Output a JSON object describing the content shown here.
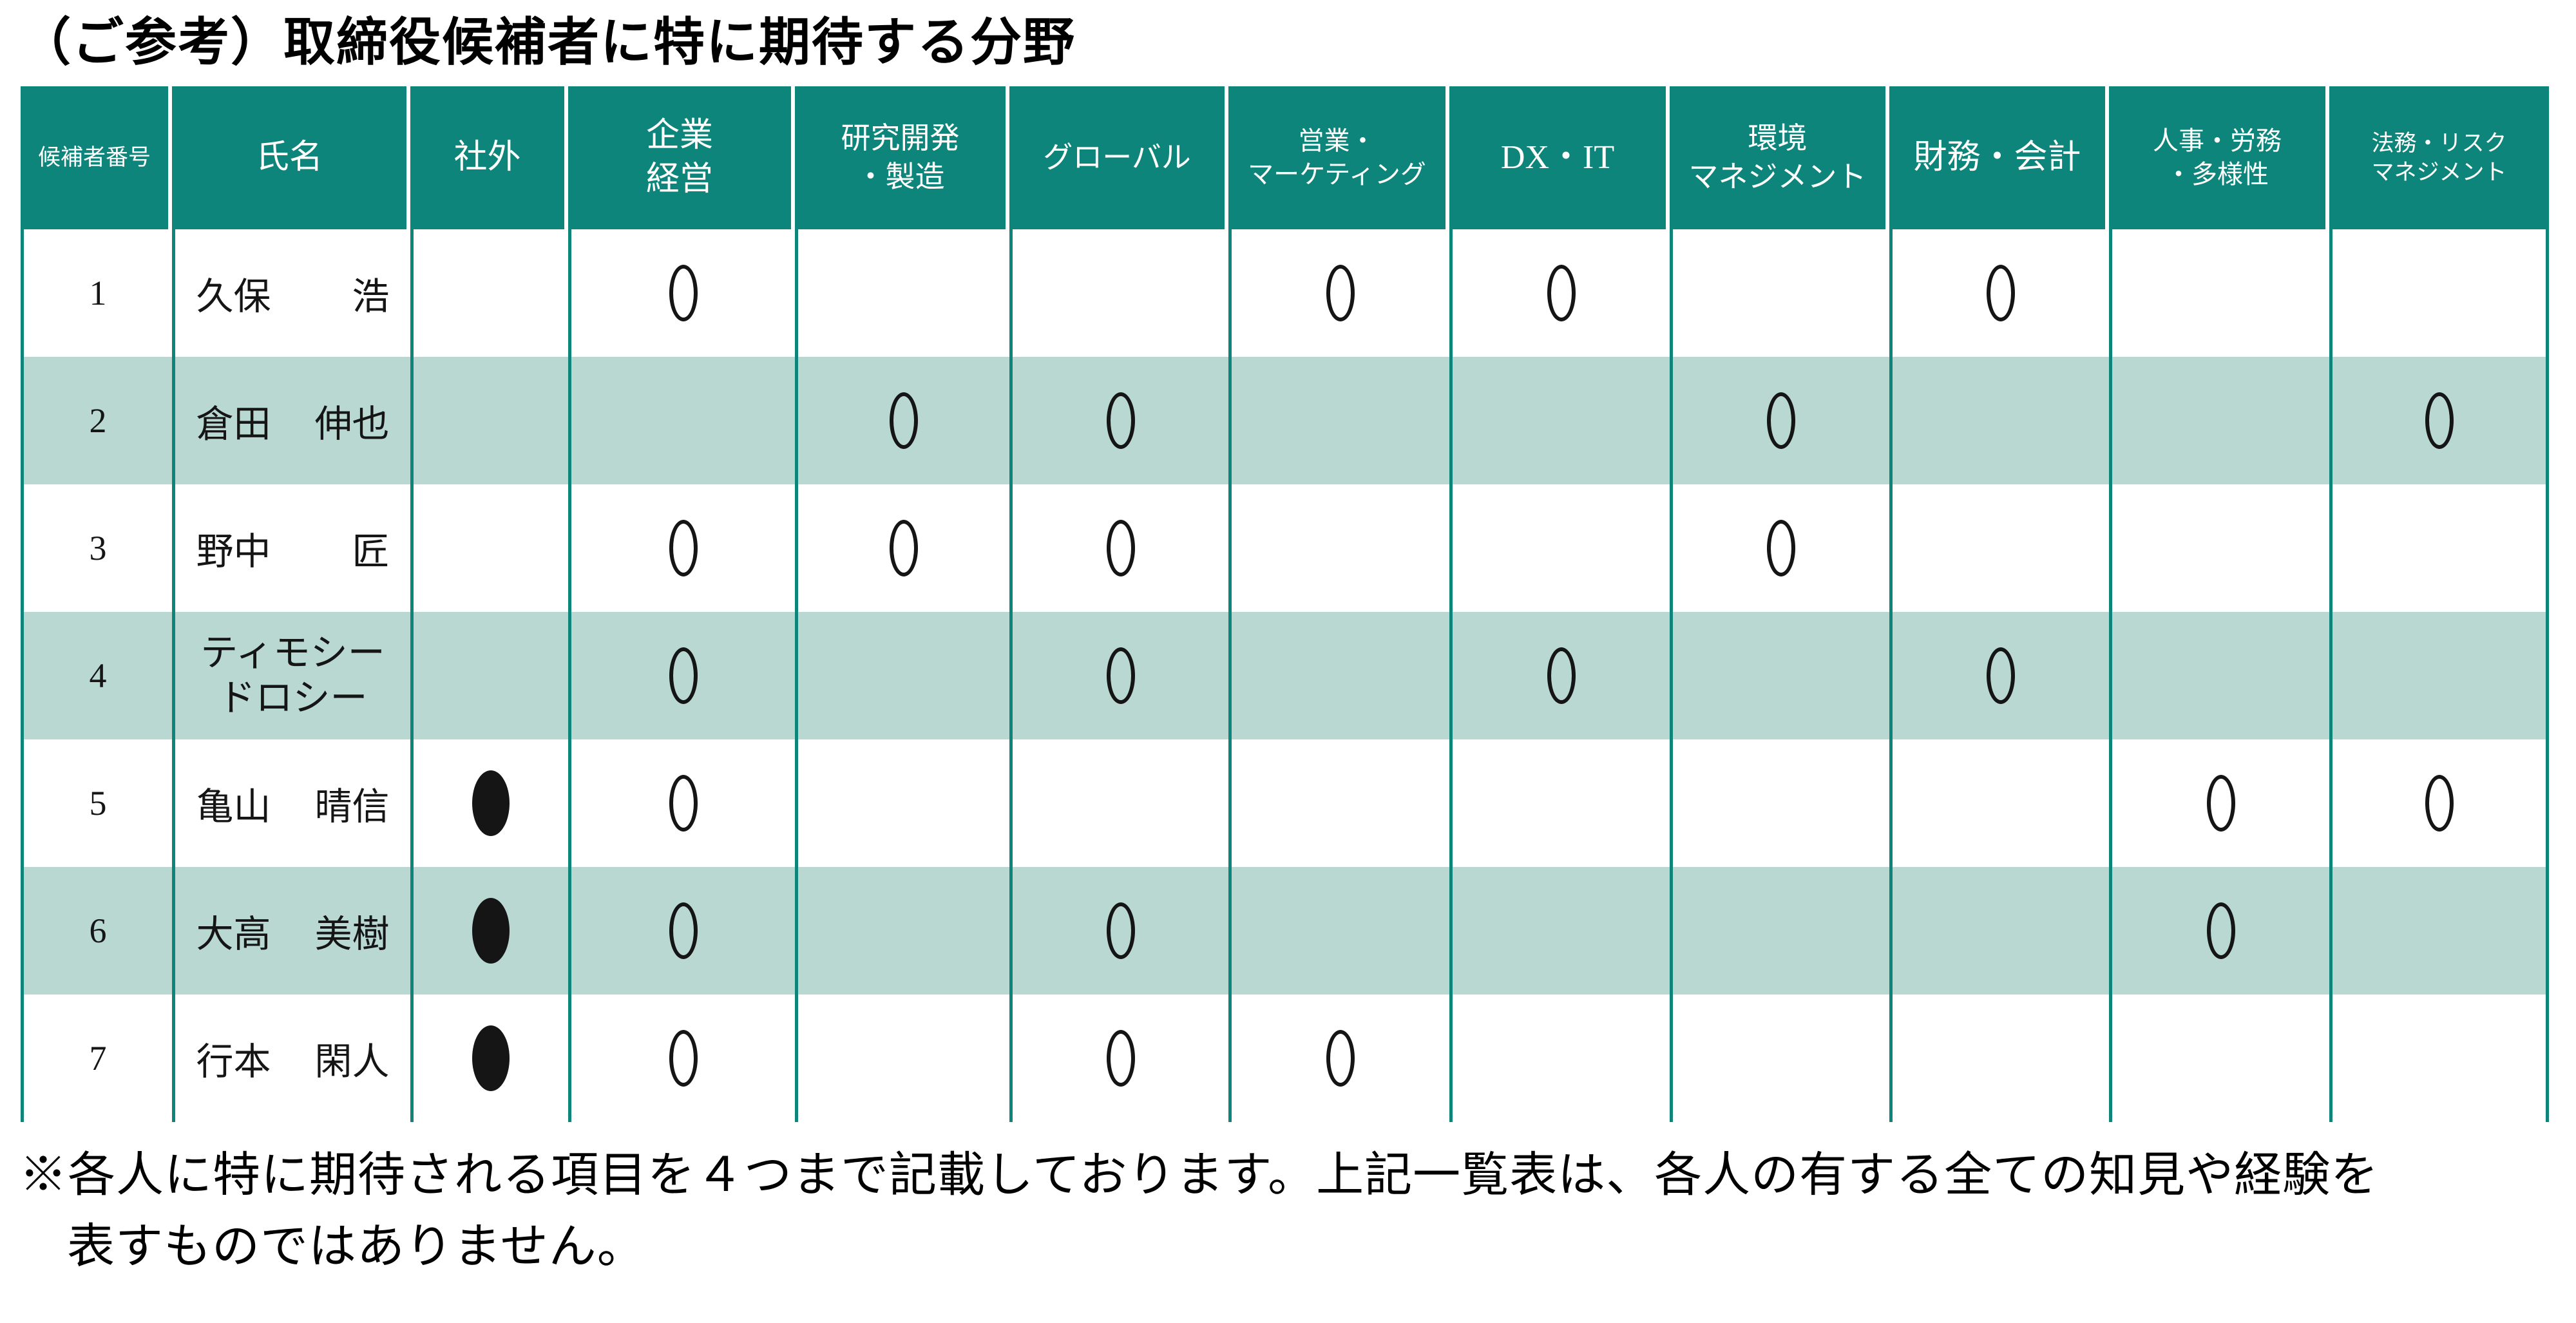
{
  "title": "（ご参考）取締役候補者に特に期待する分野",
  "table": {
    "marks": {
      "expected": "○",
      "outside_director": "●"
    },
    "columns": [
      {
        "key": "number",
        "label": "候補者番号",
        "lines": [
          "候補者番号"
        ],
        "size": "xs"
      },
      {
        "key": "name",
        "label": "氏名",
        "lines": [
          "氏名"
        ],
        "size": "lg"
      },
      {
        "key": "outside",
        "label": "社外",
        "lines": [
          "社外"
        ],
        "size": "lg"
      },
      {
        "key": "management",
        "label": "企業経営",
        "lines": [
          "企業",
          "経営"
        ],
        "size": "lg"
      },
      {
        "key": "rnd",
        "label": "研究開発・製造",
        "lines": [
          "研究開発",
          "・製造"
        ],
        "size": "md"
      },
      {
        "key": "global",
        "label": "グローバル",
        "lines": [
          "グローバル"
        ],
        "size": "md"
      },
      {
        "key": "sales",
        "label": "営業・マーケティング",
        "lines": [
          "営業・",
          "マーケティング"
        ],
        "size": "sm"
      },
      {
        "key": "dxit",
        "label": "DX・IT",
        "lines": [
          "DX・IT"
        ],
        "size": "lg"
      },
      {
        "key": "env",
        "label": "環境マネジメント",
        "lines": [
          "環境",
          "マネジメント"
        ],
        "size": "md"
      },
      {
        "key": "finance",
        "label": "財務・会計",
        "lines": [
          "財務・会計"
        ],
        "size": "lg"
      },
      {
        "key": "hr",
        "label": "人事・労務・多様性",
        "lines": [
          "人事・労務",
          "・多様性"
        ],
        "size": "sm"
      },
      {
        "key": "legal",
        "label": "法務・リスクマネジメント",
        "lines": [
          "法務・リスク",
          "マネジメント"
        ],
        "size": "xs"
      }
    ],
    "rows": [
      {
        "number": "1",
        "name": "久保　浩",
        "two_line_name": false,
        "outside": false,
        "fields": [
          "management",
          "sales",
          "dxit",
          "finance"
        ]
      },
      {
        "number": "2",
        "name": "倉田　伸也",
        "two_line_name": false,
        "outside": false,
        "fields": [
          "rnd",
          "global",
          "env",
          "legal"
        ]
      },
      {
        "number": "3",
        "name": "野中　匠",
        "two_line_name": false,
        "outside": false,
        "fields": [
          "management",
          "rnd",
          "global",
          "env"
        ]
      },
      {
        "number": "4",
        "name": "ティモシー　ドロシー",
        "two_line_name": true,
        "outside": false,
        "fields": [
          "management",
          "global",
          "dxit",
          "finance"
        ]
      },
      {
        "number": "5",
        "name": "亀山　晴信",
        "two_line_name": false,
        "outside": true,
        "fields": [
          "management",
          "hr",
          "legal"
        ]
      },
      {
        "number": "6",
        "name": "大高　美樹",
        "two_line_name": false,
        "outside": true,
        "fields": [
          "management",
          "global",
          "hr"
        ]
      },
      {
        "number": "7",
        "name": "行本　閑人",
        "two_line_name": false,
        "outside": true,
        "fields": [
          "management",
          "global",
          "sales"
        ]
      }
    ]
  },
  "footnote": {
    "marker": "※",
    "line1": "各人に特に期待される項目を４つまで記載しております。上記一覧表は、各人の有する全ての知見や経験を",
    "line2": "表すものではありません。"
  }
}
